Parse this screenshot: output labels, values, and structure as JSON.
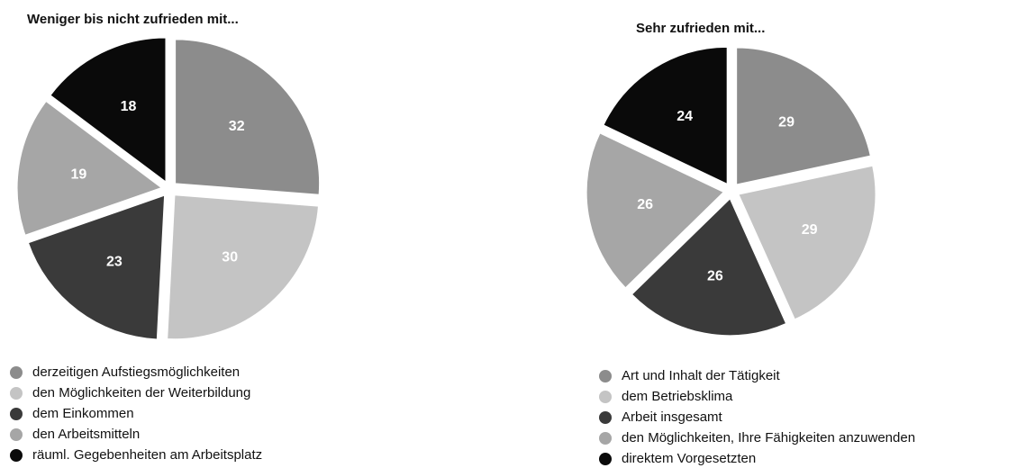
{
  "chart_data": [
    {
      "type": "pie",
      "title": "Weniger bis nicht zufrieden mit...",
      "categories": [
        "derzeitigen Aufstiegsmöglichkeiten",
        "den Möglichkeiten der Weiterbildung",
        "dem Einkommen",
        "den Arbeitsmitteln",
        "räuml. Gegebenheiten am Arbeitsplatz"
      ],
      "values": [
        32,
        30,
        23,
        19,
        18
      ],
      "colors": [
        "#8c8c8c",
        "#c4c4c4",
        "#3a3a3a",
        "#a6a6a6",
        "#0a0a0a"
      ]
    },
    {
      "type": "pie",
      "title": "Sehr zufrieden mit...",
      "categories": [
        "Art und Inhalt der Tätigkeit",
        "dem Betriebsklima",
        "Arbeit insgesamt",
        "den Möglichkeiten, Ihre Fähigkeiten anzuwenden",
        "direktem Vorgesetzten"
      ],
      "values": [
        29,
        29,
        26,
        26,
        24
      ],
      "colors": [
        "#8c8c8c",
        "#c4c4c4",
        "#3a3a3a",
        "#a6a6a6",
        "#0a0a0a"
      ]
    }
  ]
}
